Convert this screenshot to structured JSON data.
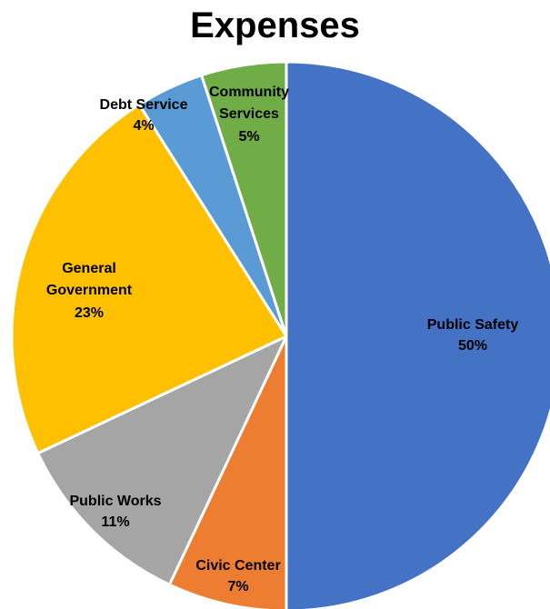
{
  "chart_data": {
    "type": "pie",
    "title": "Expenses",
    "slices": [
      {
        "label": "Public Safety",
        "value": 50,
        "value_label": "50%",
        "color": "#4472C4"
      },
      {
        "label": "Civic Center",
        "value": 7,
        "value_label": "7%",
        "color": "#ED7D31"
      },
      {
        "label": "Public Works",
        "value": 11,
        "value_label": "11%",
        "color": "#A5A5A5"
      },
      {
        "label": "General Government",
        "value": 23,
        "value_label": "23%",
        "color": "#FFC000"
      },
      {
        "label": "Debt Service",
        "value": 4,
        "value_label": "4%",
        "color": "#5B9BD5"
      },
      {
        "label": "Community Services",
        "value": 5,
        "value_label": "5%",
        "color": "#70AD47"
      }
    ],
    "start_angle": "12 o'clock",
    "direction": "clockwise",
    "legend": "none"
  }
}
